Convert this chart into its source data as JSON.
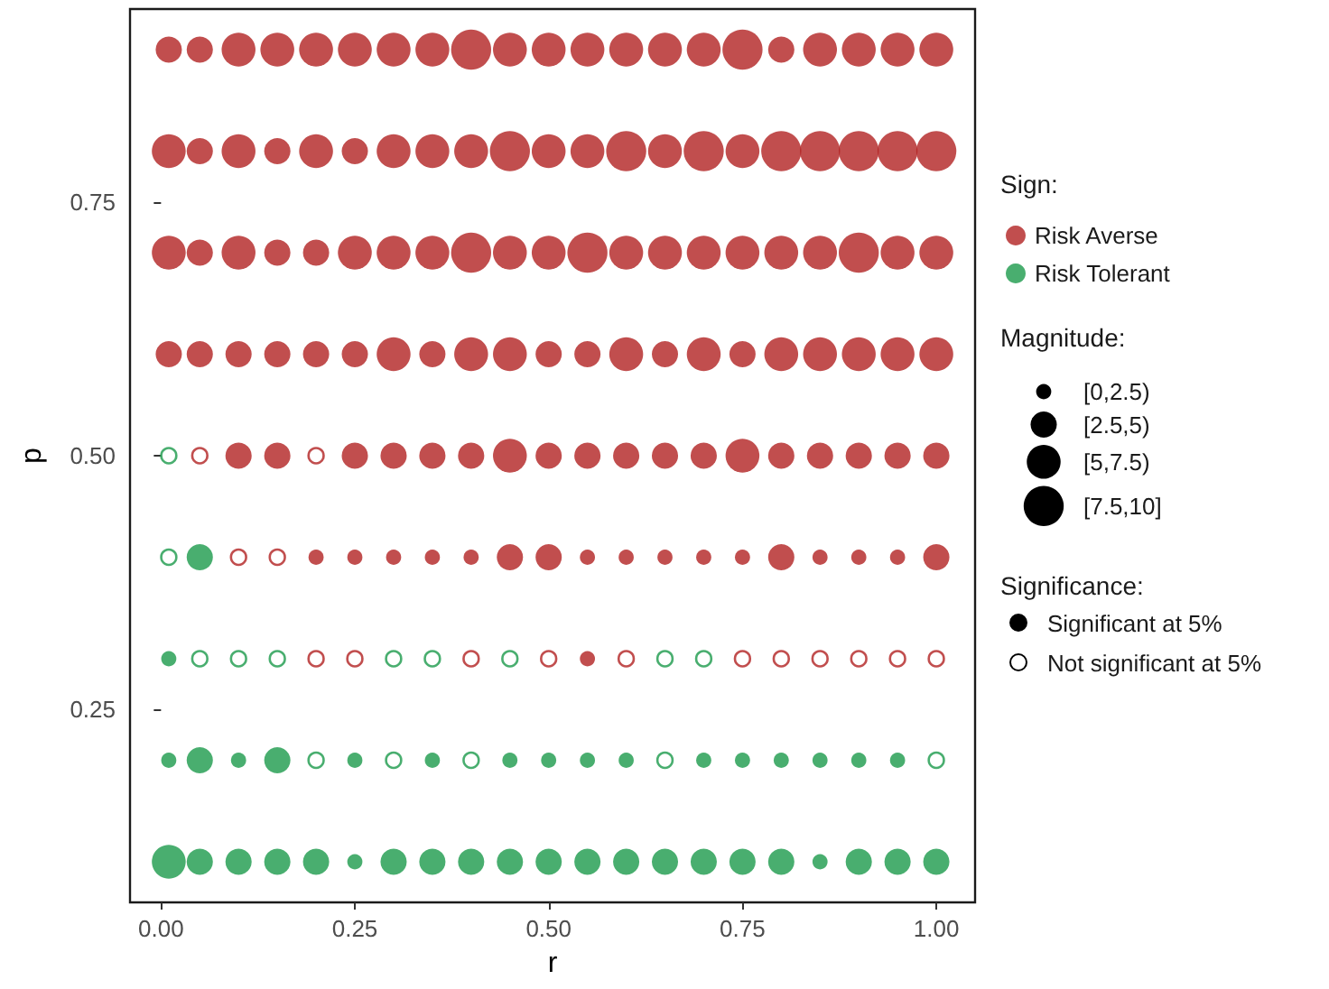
{
  "chart_data": {
    "type": "bubble",
    "xlabel": "r",
    "ylabel": "p",
    "legend_title": "Sign:",
    "legend": "right",
    "grid": false,
    "xlim": [
      -0.04,
      1.05
    ],
    "xticks": [
      {
        "value": 0,
        "label": "0.00"
      },
      {
        "value": 0.25,
        "label": "0.25"
      },
      {
        "value": 0.5,
        "label": "0.50"
      },
      {
        "value": 0.75,
        "label": "0.75"
      },
      {
        "value": 1,
        "label": "1.00"
      }
    ],
    "ylim": [
      0.06,
      0.94
    ],
    "yticks": [
      {
        "value": 0.25,
        "label": "0.25"
      },
      {
        "value": 0.5,
        "label": "0.50"
      },
      {
        "value": 0.75,
        "label": "0.75"
      }
    ],
    "size_legend": [
      {
        "value": 1.25,
        "label": "[0,2.5)"
      },
      {
        "value": 3.75,
        "label": "[2.5,5)"
      },
      {
        "value": 6.25,
        "label": "[5,7.5)"
      },
      {
        "value": 8.75,
        "label": "[7.5,10]"
      }
    ],
    "annotations": [
      "Magnitude:",
      "Significance:",
      "Significant at 5%",
      "Not significant at 5%"
    ],
    "series": [
      {
        "name": "Risk Averse",
        "color": "#b22222",
        "x": [
          0.01,
          0.05,
          0.1,
          0.15,
          0.2,
          0.25,
          0.3,
          0.35,
          0.4,
          0.45,
          0.5,
          0.55,
          0.6,
          0.65,
          0.7,
          0.75,
          0.8,
          0.85,
          0.9,
          0.95,
          1.0,
          0.01,
          0.05,
          0.1,
          0.15,
          0.2,
          0.25,
          0.3,
          0.35,
          0.4,
          0.45,
          0.5,
          0.55,
          0.6,
          0.65,
          0.7,
          0.75,
          0.8,
          0.85,
          0.9,
          0.95,
          1.0,
          0.01,
          0.05,
          0.1,
          0.15,
          0.2,
          0.25,
          0.3,
          0.35,
          0.4,
          0.45,
          0.5,
          0.55,
          0.6,
          0.65,
          0.7,
          0.75,
          0.8,
          0.85,
          0.9,
          0.95,
          1.0,
          0.01,
          0.05,
          0.1,
          0.15,
          0.2,
          0.25,
          0.3,
          0.35,
          0.4,
          0.45,
          0.5,
          0.55,
          0.6,
          0.65,
          0.7,
          0.75,
          0.8,
          0.85,
          0.9,
          0.95,
          1.0,
          0.1,
          0.15,
          0.25,
          0.3,
          0.35,
          0.4,
          0.45,
          0.5,
          0.55,
          0.6,
          0.65,
          0.7,
          0.75,
          0.8,
          0.85,
          0.9,
          0.95,
          1.0,
          0.2,
          0.25,
          0.3,
          0.35,
          0.4,
          0.45,
          0.5,
          0.55,
          0.6,
          0.65,
          0.7,
          0.75,
          0.8,
          0.85,
          0.9,
          0.95,
          1.0,
          0.55
        ],
        "values": [
          0.9,
          0.9,
          0.9,
          0.9,
          0.9,
          0.9,
          0.9,
          0.9,
          0.9,
          0.9,
          0.9,
          0.9,
          0.9,
          0.9,
          0.9,
          0.9,
          0.9,
          0.9,
          0.9,
          0.9,
          0.9,
          0.8,
          0.8,
          0.8,
          0.8,
          0.8,
          0.8,
          0.8,
          0.8,
          0.8,
          0.8,
          0.8,
          0.8,
          0.8,
          0.8,
          0.8,
          0.8,
          0.8,
          0.8,
          0.8,
          0.8,
          0.8,
          0.7,
          0.7,
          0.7,
          0.7,
          0.7,
          0.7,
          0.7,
          0.7,
          0.7,
          0.7,
          0.7,
          0.7,
          0.7,
          0.7,
          0.7,
          0.7,
          0.7,
          0.7,
          0.7,
          0.7,
          0.7,
          0.6,
          0.6,
          0.6,
          0.6,
          0.6,
          0.6,
          0.6,
          0.6,
          0.6,
          0.6,
          0.6,
          0.6,
          0.6,
          0.6,
          0.6,
          0.6,
          0.6,
          0.6,
          0.6,
          0.6,
          0.6,
          0.5,
          0.5,
          0.5,
          0.5,
          0.5,
          0.5,
          0.5,
          0.5,
          0.5,
          0.5,
          0.5,
          0.5,
          0.5,
          0.5,
          0.5,
          0.5,
          0.5,
          0.5,
          0.4,
          0.4,
          0.4,
          0.4,
          0.4,
          0.4,
          0.4,
          0.4,
          0.4,
          0.4,
          0.4,
          0.4,
          0.4,
          0.4,
          0.4,
          0.4,
          0.4,
          0.3
        ],
        "sizes": [
          3.75,
          3.75,
          6.25,
          6.25,
          6.25,
          6.25,
          6.25,
          6.25,
          8.75,
          6.25,
          6.25,
          6.25,
          6.25,
          6.25,
          6.25,
          8.75,
          3.75,
          6.25,
          6.25,
          6.25,
          6.25,
          6.25,
          3.75,
          6.25,
          3.75,
          6.25,
          3.75,
          6.25,
          6.25,
          6.25,
          8.75,
          6.25,
          6.25,
          8.75,
          6.25,
          8.75,
          6.25,
          8.75,
          8.75,
          8.75,
          8.75,
          8.75,
          6.25,
          3.75,
          6.25,
          3.75,
          3.75,
          6.25,
          6.25,
          6.25,
          8.75,
          6.25,
          6.25,
          8.75,
          6.25,
          6.25,
          6.25,
          6.25,
          6.25,
          6.25,
          8.75,
          6.25,
          6.25,
          3.75,
          3.75,
          3.75,
          3.75,
          3.75,
          3.75,
          6.25,
          3.75,
          6.25,
          6.25,
          3.75,
          3.75,
          6.25,
          3.75,
          6.25,
          3.75,
          6.25,
          6.25,
          6.25,
          6.25,
          6.25,
          3.75,
          3.75,
          3.75,
          3.75,
          3.75,
          3.75,
          6.25,
          3.75,
          3.75,
          3.75,
          3.75,
          3.75,
          6.25,
          3.75,
          3.75,
          3.75,
          3.75,
          3.75,
          1.25,
          1.25,
          1.25,
          1.25,
          1.25,
          3.75,
          3.75,
          1.25,
          1.25,
          1.25,
          1.25,
          1.25,
          3.75,
          1.25,
          1.25,
          1.25,
          3.75,
          1.25
        ]
      },
      {
        "name": "Risk Tolerant",
        "color": "#1b9a4b",
        "x": [
          0.05,
          0.01,
          0.01,
          0.05,
          0.1,
          0.15,
          0.25,
          0.35,
          0.45,
          0.5,
          0.55,
          0.6,
          0.7,
          0.75,
          0.8,
          0.85,
          0.9,
          0.95,
          0.01,
          0.05,
          0.1,
          0.15,
          0.2,
          0.25,
          0.3,
          0.35,
          0.4,
          0.45,
          0.5,
          0.55,
          0.6,
          0.65,
          0.7,
          0.75,
          0.8,
          0.85,
          0.9,
          0.95,
          1.0
        ],
        "values": [
          0.4,
          0.3,
          0.2,
          0.2,
          0.2,
          0.2,
          0.2,
          0.2,
          0.2,
          0.2,
          0.2,
          0.2,
          0.2,
          0.2,
          0.2,
          0.2,
          0.2,
          0.2,
          0.1,
          0.1,
          0.1,
          0.1,
          0.1,
          0.1,
          0.1,
          0.1,
          0.1,
          0.1,
          0.1,
          0.1,
          0.1,
          0.1,
          0.1,
          0.1,
          0.1,
          0.1,
          0.1,
          0.1,
          0.1
        ],
        "sizes": [
          3.75,
          1.25,
          1.25,
          3.75,
          1.25,
          3.75,
          1.25,
          1.25,
          1.25,
          1.25,
          1.25,
          1.25,
          1.25,
          1.25,
          1.25,
          1.25,
          1.25,
          1.25,
          6.25,
          3.75,
          3.75,
          3.75,
          3.75,
          1.25,
          3.75,
          3.75,
          3.75,
          3.75,
          3.75,
          3.75,
          3.75,
          3.75,
          3.75,
          3.75,
          3.75,
          1.25,
          3.75,
          3.75,
          3.75
        ]
      },
      {
        "color": "#b22222",
        "x": [
          0.05,
          0.2,
          0.1,
          0.15,
          0.2,
          0.25,
          0.4,
          0.5,
          0.6,
          0.75,
          0.8,
          0.85,
          0.9,
          0.95,
          1.0
        ],
        "values": [
          0.5,
          0.5,
          0.4,
          0.4,
          0.3,
          0.3,
          0.3,
          0.3,
          0.3,
          0.3,
          0.3,
          0.3,
          0.3,
          0.3,
          0.3
        ],
        "sizes": [
          1.25,
          1.25,
          1.25,
          1.25,
          1.25,
          1.25,
          1.25,
          1.25,
          1.25,
          1.25,
          1.25,
          1.25,
          1.25,
          1.25,
          1.25
        ]
      },
      {
        "color": "#1b9a4b",
        "x": [
          0.01,
          0.01,
          0.05,
          0.1,
          0.15,
          0.3,
          0.35,
          0.45,
          0.65,
          0.7,
          0.2,
          0.3,
          0.4,
          0.65,
          1.0
        ],
        "values": [
          0.5,
          0.4,
          0.3,
          0.3,
          0.3,
          0.3,
          0.3,
          0.3,
          0.3,
          0.3,
          0.2,
          0.2,
          0.2,
          0.2,
          0.2
        ],
        "sizes": [
          1.25,
          1.25,
          1.25,
          1.25,
          1.25,
          1.25,
          1.25,
          1.25,
          1.25,
          1.25,
          1.25,
          1.25,
          1.25,
          1.25,
          1.25
        ]
      }
    ]
  }
}
